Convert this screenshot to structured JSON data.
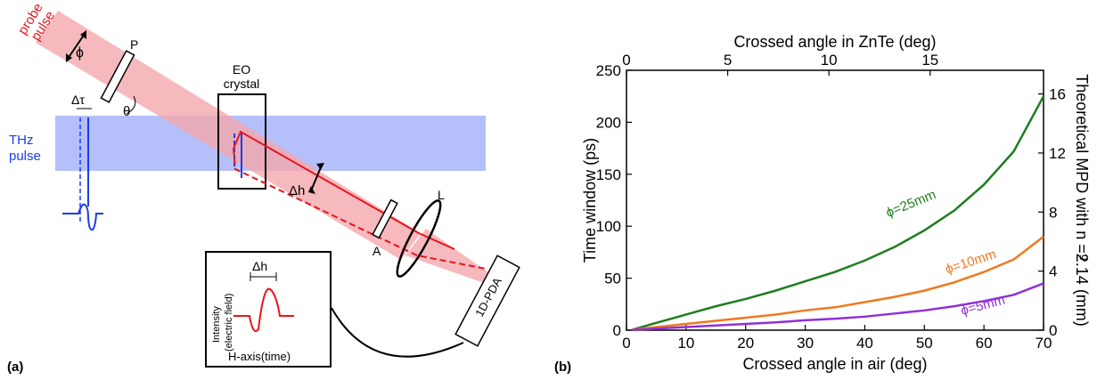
{
  "panel_a": {
    "label": "(a)",
    "probe_label_line1": "probe",
    "probe_label_line2": "pulse",
    "phi": "ϕ",
    "polarizer": "P",
    "theta": "θ",
    "delta_tau": "Δτ",
    "thz_line1": "THz",
    "thz_line2": "pulse",
    "eo_line1": "EO",
    "eo_line2": "crystal",
    "delta_h": "Δh",
    "analyzer": "A",
    "lens": "L",
    "detector": "1D-PDA",
    "inset": {
      "delta_h": "Δh",
      "ylabel_line1": "Intensity",
      "ylabel_line2": "(electric field)",
      "xlabel": "H-axis(time)"
    },
    "colors": {
      "probe": "#e8141c",
      "probe_beam": "#f2a0a4",
      "thz": "#1a3cf0",
      "thz_beam": "#a8b4f8"
    }
  },
  "panel_b": {
    "label": "(b)",
    "top_axis_label": "Crossed angle in ZnTe (deg)",
    "right_axis_label": "Theoretical MPD with n =2.14 (mm)",
    "right_axis_sub": "g"
  },
  "chart_data": {
    "type": "line",
    "xlabel": "Crossed angle in air (deg)",
    "ylabel": "Time window (ps)",
    "xlim": [
      0,
      70
    ],
    "ylim": [
      0,
      250
    ],
    "xticks": [
      "0",
      "10",
      "20",
      "30",
      "40",
      "50",
      "60",
      "70"
    ],
    "yticks": [
      "0",
      "50",
      "100",
      "150",
      "200",
      "250"
    ],
    "top_xlim": [
      0,
      20.6
    ],
    "top_xticks": [
      "0",
      "5",
      "10",
      "15"
    ],
    "right_ylim": [
      0,
      17.6
    ],
    "right_yticks": [
      "0",
      "4",
      "8",
      "12",
      "16"
    ],
    "grid": false,
    "series": [
      {
        "name": "ϕ=25mm",
        "color": "#1e7d1e",
        "x": [
          1,
          5,
          10,
          15,
          20,
          25,
          30,
          35,
          40,
          45,
          50,
          55,
          60,
          65,
          70
        ],
        "y": [
          0.5,
          7,
          15,
          23,
          30,
          38,
          47,
          56,
          67,
          80,
          96,
          115,
          140,
          172,
          225
        ]
      },
      {
        "name": "ϕ=10mm",
        "color": "#f07820",
        "x": [
          1,
          5,
          10,
          15,
          20,
          25,
          30,
          35,
          40,
          45,
          50,
          55,
          60,
          65,
          70
        ],
        "y": [
          0.3,
          3,
          6,
          9,
          12,
          15,
          19,
          22,
          27,
          32,
          38,
          46,
          56,
          68,
          90
        ]
      },
      {
        "name": "ϕ=5mm",
        "color": "#9030d8",
        "x": [
          1,
          5,
          10,
          15,
          20,
          25,
          30,
          35,
          40,
          45,
          50,
          55,
          60,
          65,
          70
        ],
        "y": [
          0.2,
          1.5,
          3,
          4.5,
          6,
          7.5,
          9.5,
          11,
          13,
          16,
          19,
          23,
          28,
          34,
          45
        ]
      }
    ]
  }
}
